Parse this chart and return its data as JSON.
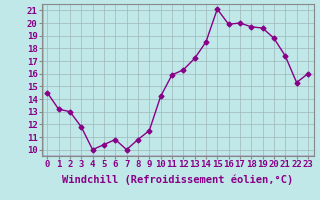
{
  "x": [
    0,
    1,
    2,
    3,
    4,
    5,
    6,
    7,
    8,
    9,
    10,
    11,
    12,
    13,
    14,
    15,
    16,
    17,
    18,
    19,
    20,
    21,
    22,
    23
  ],
  "y": [
    14.5,
    13.2,
    13.0,
    11.8,
    10.0,
    10.4,
    10.8,
    10.0,
    10.8,
    11.5,
    14.2,
    15.9,
    16.3,
    17.2,
    18.5,
    21.1,
    19.9,
    20.0,
    19.7,
    19.6,
    18.8,
    17.4,
    15.3,
    16.0
  ],
  "line_color": "#880088",
  "marker": "D",
  "marker_size": 2.5,
  "line_width": 1.0,
  "bg_color": "#c0e8e8",
  "grid_color": "#a0b8b8",
  "xlabel": "Windchill (Refroidissement éolien,°C)",
  "xlabel_fontsize": 7.5,
  "ylabel_ticks": [
    10,
    11,
    12,
    13,
    14,
    15,
    16,
    17,
    18,
    19,
    20,
    21
  ],
  "xlim": [
    -0.5,
    23.5
  ],
  "ylim": [
    9.5,
    21.5
  ],
  "tick_fontsize": 6.5,
  "xtick_labels": [
    "0",
    "1",
    "2",
    "3",
    "4",
    "5",
    "6",
    "7",
    "8",
    "9",
    "10",
    "11",
    "12",
    "13",
    "14",
    "15",
    "16",
    "17",
    "18",
    "19",
    "20",
    "21",
    "22",
    "23"
  ]
}
